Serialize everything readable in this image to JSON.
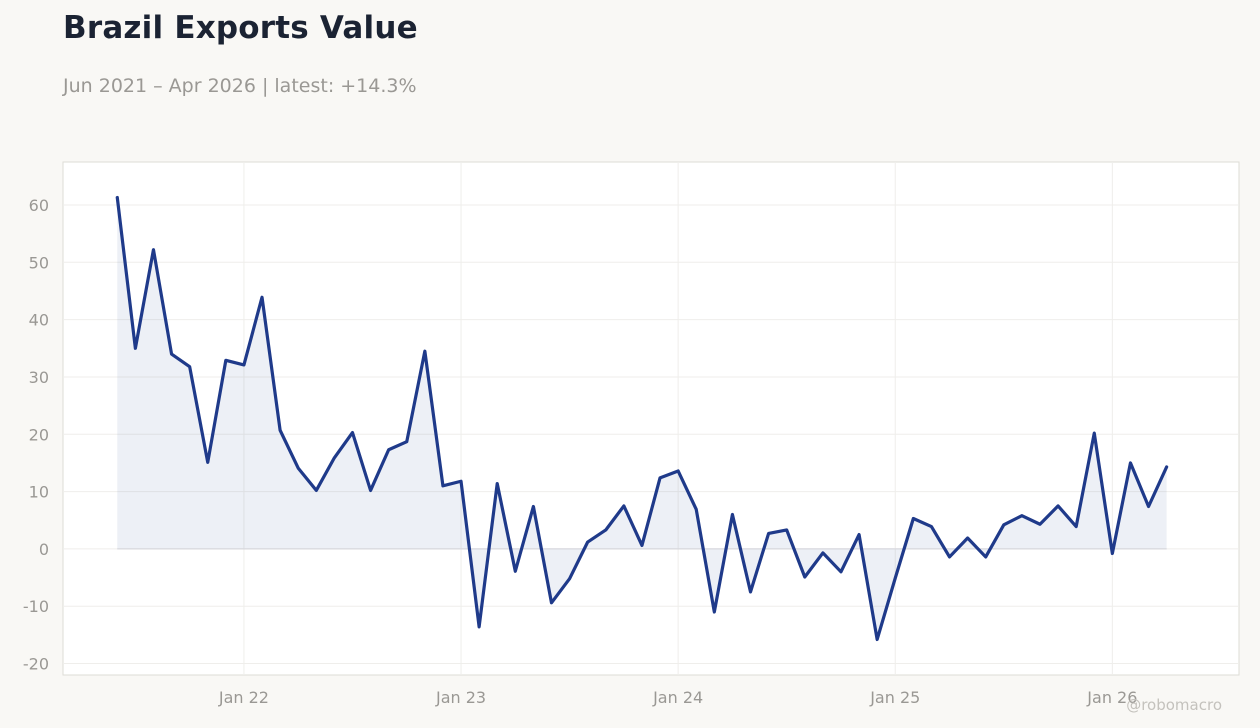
{
  "header": {
    "title": "Brazil Exports Value",
    "subtitle": "Jun 2021 – Apr 2026 | latest: +14.3%"
  },
  "watermark": "@robomacro",
  "colors": {
    "line": "#1f3a8a",
    "fill": "#1f3a8a",
    "grid": "#efeeeb",
    "axis_frame": "#dddcd6",
    "zero_line": "#d8d8de"
  },
  "chart_data": {
    "type": "area",
    "title": "Brazil Exports Value",
    "subtitle": "Jun 2021 – Apr 2026 | latest: +14.3%",
    "xlabel": "",
    "ylabel": "",
    "x": [
      "2021-06",
      "2021-07",
      "2021-08",
      "2021-09",
      "2021-10",
      "2021-11",
      "2021-12",
      "2022-01",
      "2022-02",
      "2022-03",
      "2022-04",
      "2022-05",
      "2022-06",
      "2022-07",
      "2022-08",
      "2022-09",
      "2022-10",
      "2022-11",
      "2022-12",
      "2023-01",
      "2023-02",
      "2023-03",
      "2023-04",
      "2023-05",
      "2023-06",
      "2023-07",
      "2023-08",
      "2023-09",
      "2023-10",
      "2023-11",
      "2023-12",
      "2024-01",
      "2024-02",
      "2024-03",
      "2024-04",
      "2024-05",
      "2024-06",
      "2024-07",
      "2024-08",
      "2024-09",
      "2024-10",
      "2024-11",
      "2024-12",
      "2025-01",
      "2025-02",
      "2025-03",
      "2025-04",
      "2025-05",
      "2025-06",
      "2025-07",
      "2025-08",
      "2025-09",
      "2025-10",
      "2025-11",
      "2025-12",
      "2026-01",
      "2026-02",
      "2026-03",
      "2026-04"
    ],
    "series": [
      {
        "values": [
          61.3,
          35.0,
          52.2,
          34.0,
          31.8,
          15.1,
          32.9,
          32.1,
          43.9,
          20.7,
          14.1,
          10.2,
          15.9,
          20.3,
          10.2,
          17.3,
          18.7,
          34.5,
          11.0,
          11.8,
          -13.6,
          11.4,
          -3.9,
          7.4,
          -9.4,
          -5.2,
          1.2,
          3.3,
          7.5,
          0.6,
          12.4,
          13.6,
          6.9,
          -11.0,
          6.0,
          -7.5,
          2.7,
          3.3,
          -4.9,
          -0.7,
          -4.0,
          2.5,
          -15.8,
          -5.1,
          5.3,
          3.9,
          -1.4,
          1.9,
          -1.4,
          4.2,
          5.8,
          4.3,
          7.5,
          3.9,
          20.2,
          -0.8,
          15.0,
          7.4,
          14.3
        ]
      }
    ],
    "x_ticks": [
      {
        "value": "2022-01",
        "label": "Jan 22"
      },
      {
        "value": "2023-01",
        "label": "Jan 23"
      },
      {
        "value": "2024-01",
        "label": "Jan 24"
      },
      {
        "value": "2025-01",
        "label": "Jan 25"
      },
      {
        "value": "2026-01",
        "label": "Jan 26"
      }
    ],
    "y_ticks": [
      -20,
      -10,
      0,
      10,
      20,
      30,
      40,
      50,
      60
    ],
    "xlim": [
      "2021-03",
      "2026-08"
    ],
    "ylim": [
      -22,
      67.5
    ],
    "grid": true,
    "legend": "none",
    "fill_to_zero": true
  }
}
